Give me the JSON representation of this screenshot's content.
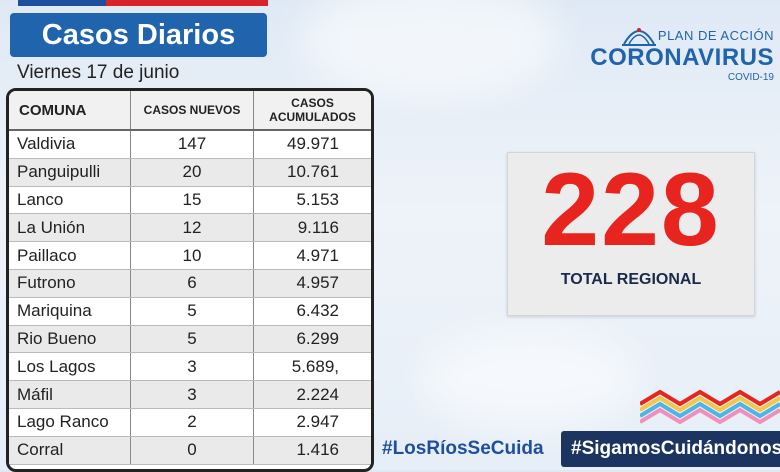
{
  "header": {
    "title": "Casos Diarios",
    "date": "Viernes 17 de junio"
  },
  "table": {
    "columns": [
      "COMUNA",
      "CASOS NUEVOS",
      "CASOS",
      "ACUMULADOS"
    ],
    "rows": [
      {
        "comuna": "Valdivia",
        "nuevos": "147",
        "acumulados": "49.971"
      },
      {
        "comuna": "Panguipulli",
        "nuevos": "20",
        "acumulados": "10.761"
      },
      {
        "comuna": "Lanco",
        "nuevos": "15",
        "acumulados": "5.153"
      },
      {
        "comuna": "La Unión",
        "nuevos": "12",
        "acumulados": "9.116"
      },
      {
        "comuna": "Paillaco",
        "nuevos": "10",
        "acumulados": "4.971"
      },
      {
        "comuna": "Futrono",
        "nuevos": "6",
        "acumulados": "4.957"
      },
      {
        "comuna": "Mariquina",
        "nuevos": "5",
        "acumulados": "6.432"
      },
      {
        "comuna": "Rio Bueno",
        "nuevos": "5",
        "acumulados": "6.299"
      },
      {
        "comuna": "Los Lagos",
        "nuevos": "3",
        "acumulados": "5.689,"
      },
      {
        "comuna": "Máfil",
        "nuevos": "3",
        "acumulados": "2.224"
      },
      {
        "comuna": "Lago Ranco",
        "nuevos": "2",
        "acumulados": "2.947"
      },
      {
        "comuna": "Corral",
        "nuevos": "0",
        "acumulados": "1.416"
      }
    ]
  },
  "logo": {
    "plan": "PLAN DE ACCIÓN",
    "name": "CORONAVIRUS",
    "sub": "COVID-19"
  },
  "total": {
    "value": "228",
    "label": "TOTAL REGIONAL"
  },
  "hashtags": {
    "left": "#LosRíosSeCuida",
    "right": "#SigamosCuidándonos"
  },
  "colors": {
    "brand_blue": "#1f64ad",
    "accent_red": "#e8241f",
    "dark_navy": "#1b3460"
  }
}
